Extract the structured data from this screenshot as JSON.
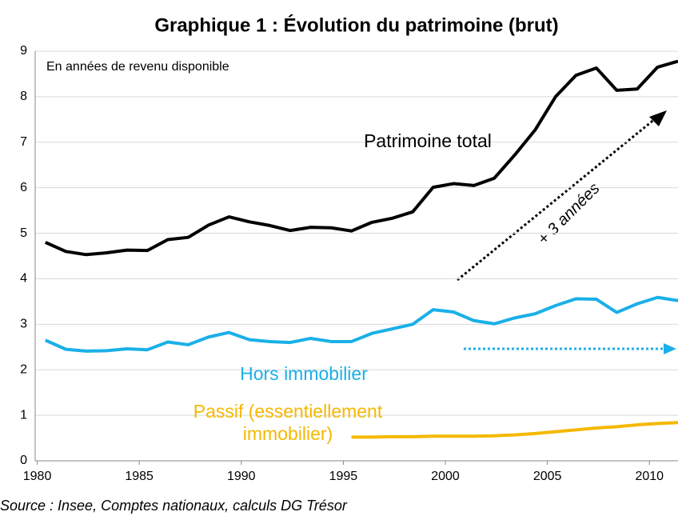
{
  "chart_data": {
    "type": "line",
    "title": "Graphique 1 : Évolution du patrimoine (brut)",
    "subtitle": "En années de revenu disponible",
    "source": "Source : Insee, Comptes nationaux, calculs DG Trésor",
    "annotation": "+ 3 années",
    "x": [
      1980.4,
      1981.4,
      1982.4,
      1983.4,
      1984.4,
      1985.4,
      1986.4,
      1987.4,
      1988.4,
      1989.4,
      1990.4,
      1991.4,
      1992.4,
      1993.4,
      1994.4,
      1995.4,
      1996.4,
      1997.4,
      1998.4,
      1999.4,
      2000.4,
      2001.4,
      2002.4,
      2003.4,
      2004.4,
      2005.4,
      2006.4,
      2007.4,
      2008.4,
      2009.4,
      2010.4,
      2011.4
    ],
    "xlim": [
      1979.9,
      2011.4
    ],
    "xticks": [
      1980,
      1985,
      1990,
      1995,
      2000,
      2005,
      2010
    ],
    "ylim": [
      0,
      9
    ],
    "yticks": [
      0,
      1,
      2,
      3,
      4,
      5,
      6,
      7,
      8,
      9
    ],
    "grid": true,
    "series": [
      {
        "name": "Patrimoine total",
        "color": "#000000",
        "values": [
          4.8,
          4.6,
          4.53,
          4.57,
          4.63,
          4.62,
          4.86,
          4.91,
          5.18,
          5.36,
          5.25,
          5.17,
          5.06,
          5.13,
          5.12,
          5.05,
          5.24,
          5.33,
          5.47,
          6.01,
          6.09,
          6.05,
          6.21,
          6.72,
          7.27,
          8.0,
          8.47,
          8.63,
          8.14,
          8.17,
          8.65,
          8.78
        ]
      },
      {
        "name": "Hors immobilier",
        "color": "#1ab0e8",
        "values": [
          2.65,
          2.45,
          2.41,
          2.42,
          2.46,
          2.44,
          2.61,
          2.55,
          2.72,
          2.82,
          2.66,
          2.62,
          2.6,
          2.69,
          2.62,
          2.62,
          2.8,
          2.9,
          3.0,
          3.32,
          3.27,
          3.08,
          3.01,
          3.14,
          3.23,
          3.41,
          3.56,
          3.55,
          3.26,
          3.45,
          3.59,
          3.52
        ]
      },
      {
        "name": "Passif (essentiellement immobilier)",
        "color": "#f5b800",
        "values": [
          null,
          null,
          null,
          null,
          null,
          null,
          null,
          null,
          null,
          null,
          null,
          null,
          null,
          null,
          null,
          0.52,
          0.52,
          0.53,
          0.53,
          0.54,
          0.54,
          0.54,
          0.55,
          0.57,
          0.6,
          0.64,
          0.68,
          0.72,
          0.75,
          0.79,
          0.82,
          0.84
        ]
      }
    ]
  }
}
